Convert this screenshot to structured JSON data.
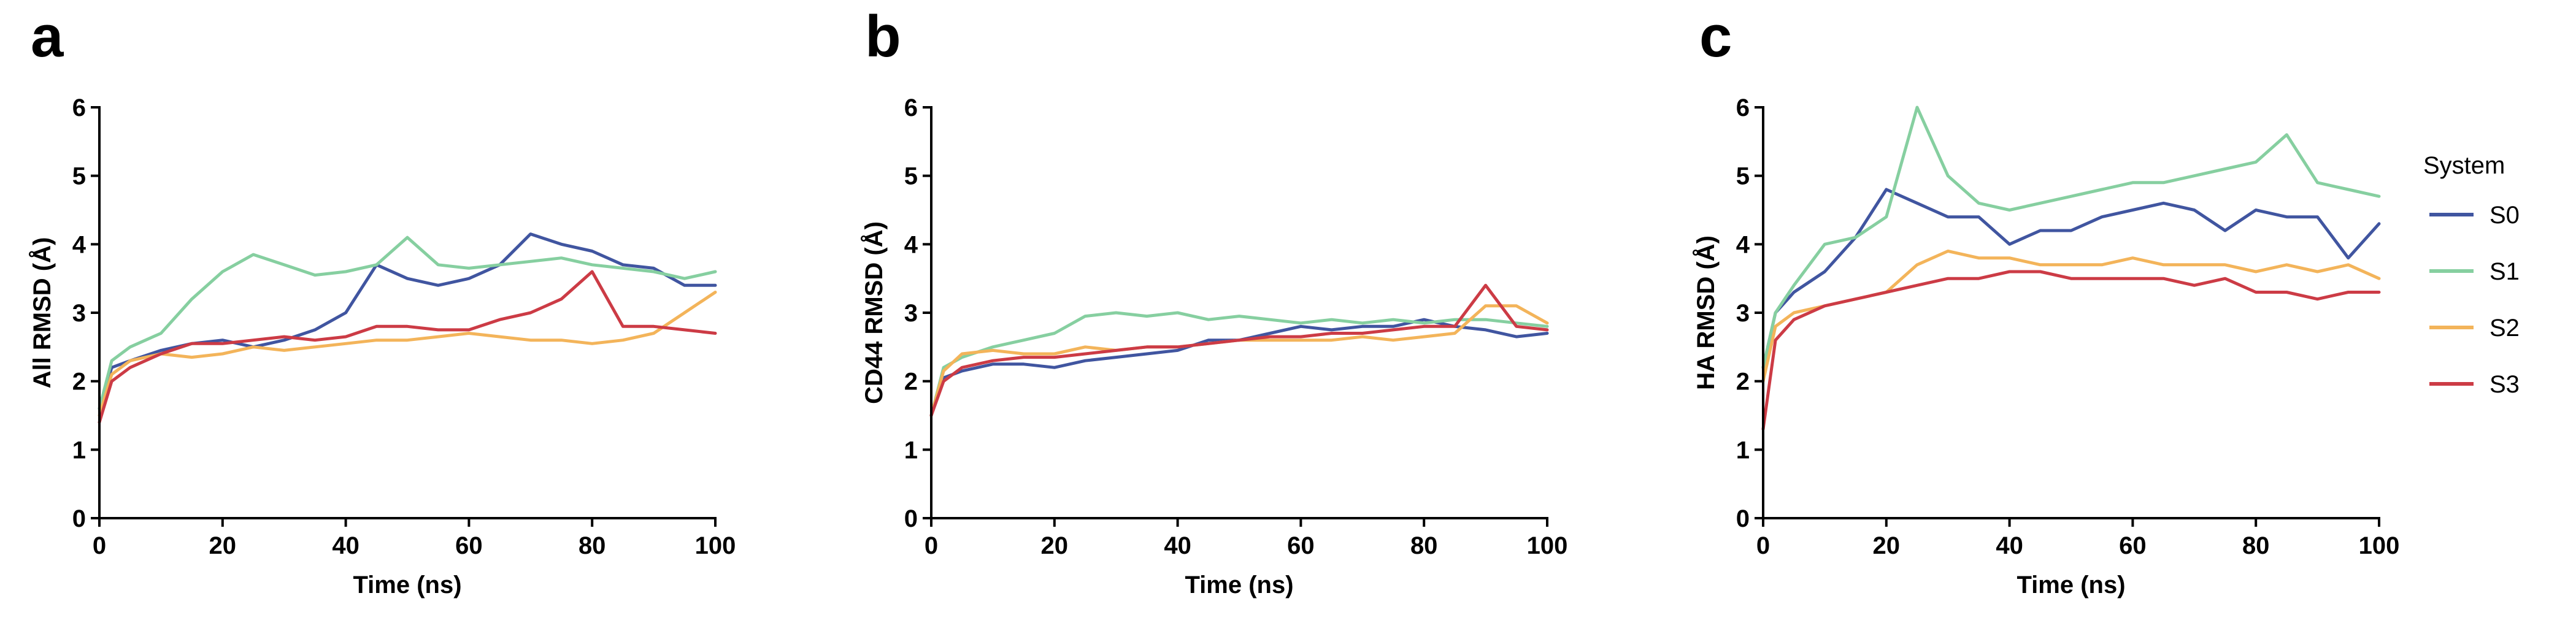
{
  "figure": {
    "panel_letters": [
      "a",
      "b",
      "c"
    ],
    "legend": {
      "title": "System",
      "entries": [
        {
          "label": "S0",
          "color": "#4055a0"
        },
        {
          "label": "S1",
          "color": "#86cfa0"
        },
        {
          "label": "S2",
          "color": "#f3b45a"
        },
        {
          "label": "S3",
          "color": "#cc3b45"
        }
      ]
    }
  },
  "chart_data": [
    {
      "type": "line",
      "panel": "a",
      "title": "",
      "xlabel": "Time (ns)",
      "ylabel": "All RMSD (Å)",
      "xlim": [
        0,
        100
      ],
      "ylim": [
        0,
        6
      ],
      "xticks": [
        0,
        20,
        40,
        60,
        80,
        100
      ],
      "yticks": [
        0,
        1,
        2,
        3,
        4,
        5,
        6
      ],
      "grid": false,
      "x": [
        0,
        2,
        5,
        10,
        15,
        20,
        25,
        30,
        35,
        40,
        45,
        50,
        55,
        60,
        65,
        70,
        75,
        80,
        85,
        90,
        95,
        100
      ],
      "series": [
        {
          "name": "S0",
          "color": "#4055a0",
          "values": [
            1.6,
            2.2,
            2.3,
            2.45,
            2.55,
            2.6,
            2.5,
            2.6,
            2.75,
            3.0,
            3.7,
            3.5,
            3.4,
            3.5,
            3.7,
            4.15,
            4.0,
            3.9,
            3.7,
            3.65,
            3.4,
            3.4
          ]
        },
        {
          "name": "S1",
          "color": "#86cfa0",
          "values": [
            1.6,
            2.3,
            2.5,
            2.7,
            3.2,
            3.6,
            3.85,
            3.7,
            3.55,
            3.6,
            3.7,
            4.1,
            3.7,
            3.65,
            3.7,
            3.75,
            3.8,
            3.7,
            3.65,
            3.6,
            3.5,
            3.6
          ]
        },
        {
          "name": "S2",
          "color": "#f3b45a",
          "values": [
            1.5,
            2.1,
            2.3,
            2.4,
            2.35,
            2.4,
            2.5,
            2.45,
            2.5,
            2.55,
            2.6,
            2.6,
            2.65,
            2.7,
            2.65,
            2.6,
            2.6,
            2.55,
            2.6,
            2.7,
            3.0,
            3.3
          ]
        },
        {
          "name": "S3",
          "color": "#cc3b45",
          "values": [
            1.4,
            2.0,
            2.2,
            2.4,
            2.55,
            2.55,
            2.6,
            2.65,
            2.6,
            2.65,
            2.8,
            2.8,
            2.75,
            2.75,
            2.9,
            3.0,
            3.2,
            3.6,
            2.8,
            2.8,
            2.75,
            2.7
          ]
        }
      ]
    },
    {
      "type": "line",
      "panel": "b",
      "title": "",
      "xlabel": "Time (ns)",
      "ylabel": "CD44 RMSD (Å)",
      "xlim": [
        0,
        100
      ],
      "ylim": [
        0,
        6
      ],
      "xticks": [
        0,
        20,
        40,
        60,
        80,
        100
      ],
      "yticks": [
        0,
        1,
        2,
        3,
        4,
        5,
        6
      ],
      "grid": false,
      "x": [
        0,
        2,
        5,
        10,
        15,
        20,
        25,
        30,
        35,
        40,
        45,
        50,
        55,
        60,
        65,
        70,
        75,
        80,
        85,
        90,
        95,
        100
      ],
      "series": [
        {
          "name": "S0",
          "color": "#4055a0",
          "values": [
            1.5,
            2.05,
            2.15,
            2.25,
            2.25,
            2.2,
            2.3,
            2.35,
            2.4,
            2.45,
            2.6,
            2.6,
            2.7,
            2.8,
            2.75,
            2.8,
            2.8,
            2.9,
            2.8,
            2.75,
            2.65,
            2.7
          ]
        },
        {
          "name": "S1",
          "color": "#86cfa0",
          "values": [
            1.5,
            2.2,
            2.35,
            2.5,
            2.6,
            2.7,
            2.95,
            3.0,
            2.95,
            3.0,
            2.9,
            2.95,
            2.9,
            2.85,
            2.9,
            2.85,
            2.9,
            2.85,
            2.9,
            2.9,
            2.85,
            2.8
          ]
        },
        {
          "name": "S2",
          "color": "#f3b45a",
          "values": [
            1.5,
            2.15,
            2.4,
            2.45,
            2.4,
            2.4,
            2.5,
            2.45,
            2.5,
            2.5,
            2.55,
            2.6,
            2.6,
            2.6,
            2.6,
            2.65,
            2.6,
            2.65,
            2.7,
            3.1,
            3.1,
            2.85
          ]
        },
        {
          "name": "S3",
          "color": "#cc3b45",
          "values": [
            1.5,
            2.0,
            2.2,
            2.3,
            2.35,
            2.35,
            2.4,
            2.45,
            2.5,
            2.5,
            2.55,
            2.6,
            2.65,
            2.65,
            2.7,
            2.7,
            2.75,
            2.8,
            2.8,
            3.4,
            2.8,
            2.75
          ]
        }
      ]
    },
    {
      "type": "line",
      "panel": "c",
      "title": "",
      "xlabel": "Time (ns)",
      "ylabel": "HA RMSD (Å)",
      "xlim": [
        0,
        100
      ],
      "ylim": [
        0,
        6
      ],
      "xticks": [
        0,
        20,
        40,
        60,
        80,
        100
      ],
      "yticks": [
        0,
        1,
        2,
        3,
        4,
        5,
        6
      ],
      "grid": false,
      "x": [
        0,
        2,
        5,
        10,
        15,
        20,
        25,
        30,
        35,
        40,
        45,
        50,
        55,
        60,
        65,
        70,
        75,
        80,
        85,
        90,
        95,
        100
      ],
      "series": [
        {
          "name": "S0",
          "color": "#4055a0",
          "values": [
            2.2,
            3.0,
            3.3,
            3.6,
            4.1,
            4.8,
            4.6,
            4.4,
            4.4,
            4.0,
            4.2,
            4.2,
            4.4,
            4.5,
            4.6,
            4.5,
            4.2,
            4.5,
            4.4,
            4.4,
            3.8,
            4.3
          ]
        },
        {
          "name": "S1",
          "color": "#86cfa0",
          "values": [
            2.2,
            3.0,
            3.4,
            4.0,
            4.1,
            4.4,
            6.0,
            5.0,
            4.6,
            4.5,
            4.6,
            4.7,
            4.8,
            4.9,
            4.9,
            5.0,
            5.1,
            5.2,
            5.6,
            4.9,
            4.8,
            4.7
          ]
        },
        {
          "name": "S2",
          "color": "#f3b45a",
          "values": [
            2.0,
            2.8,
            3.0,
            3.1,
            3.2,
            3.3,
            3.7,
            3.9,
            3.8,
            3.8,
            3.7,
            3.7,
            3.7,
            3.8,
            3.7,
            3.7,
            3.7,
            3.6,
            3.7,
            3.6,
            3.7,
            3.5
          ]
        },
        {
          "name": "S3",
          "color": "#cc3b45",
          "values": [
            1.3,
            2.6,
            2.9,
            3.1,
            3.2,
            3.3,
            3.4,
            3.5,
            3.5,
            3.6,
            3.6,
            3.5,
            3.5,
            3.5,
            3.5,
            3.4,
            3.5,
            3.3,
            3.3,
            3.2,
            3.3,
            3.3
          ]
        }
      ]
    }
  ]
}
